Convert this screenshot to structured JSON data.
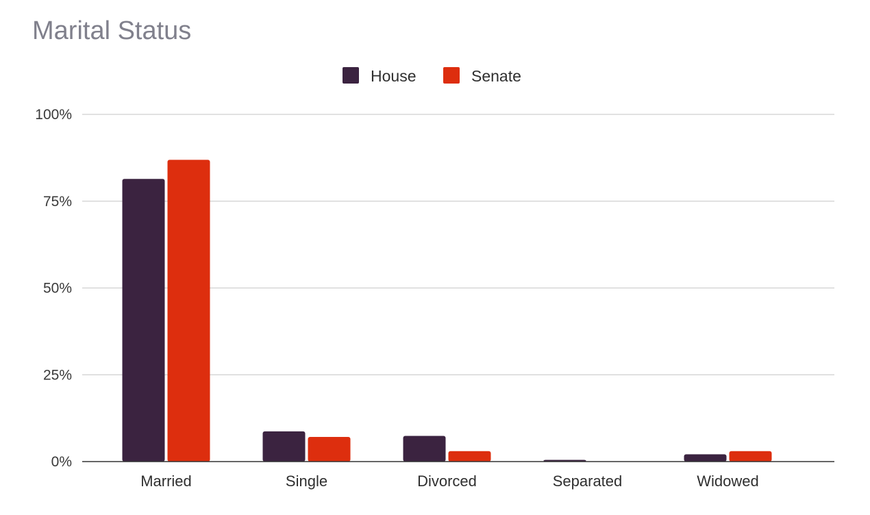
{
  "chart_data": {
    "type": "bar",
    "title": "Marital Status",
    "categories": [
      "Married",
      "Single",
      "Divorced",
      "Separated",
      "Widowed"
    ],
    "series": [
      {
        "name": "House",
        "color": "#3b2340",
        "values": [
          81.4,
          8.7,
          7.4,
          0.5,
          2.1
        ]
      },
      {
        "name": "Senate",
        "color": "#dd2e0e",
        "values": [
          86.9,
          7.1,
          3.0,
          0.0,
          3.0
        ]
      }
    ],
    "yticks": [
      "0%",
      "25%",
      "50%",
      "75%",
      "100%"
    ],
    "ylim": [
      0,
      100
    ],
    "grid": true,
    "legend_position": "top-center"
  }
}
